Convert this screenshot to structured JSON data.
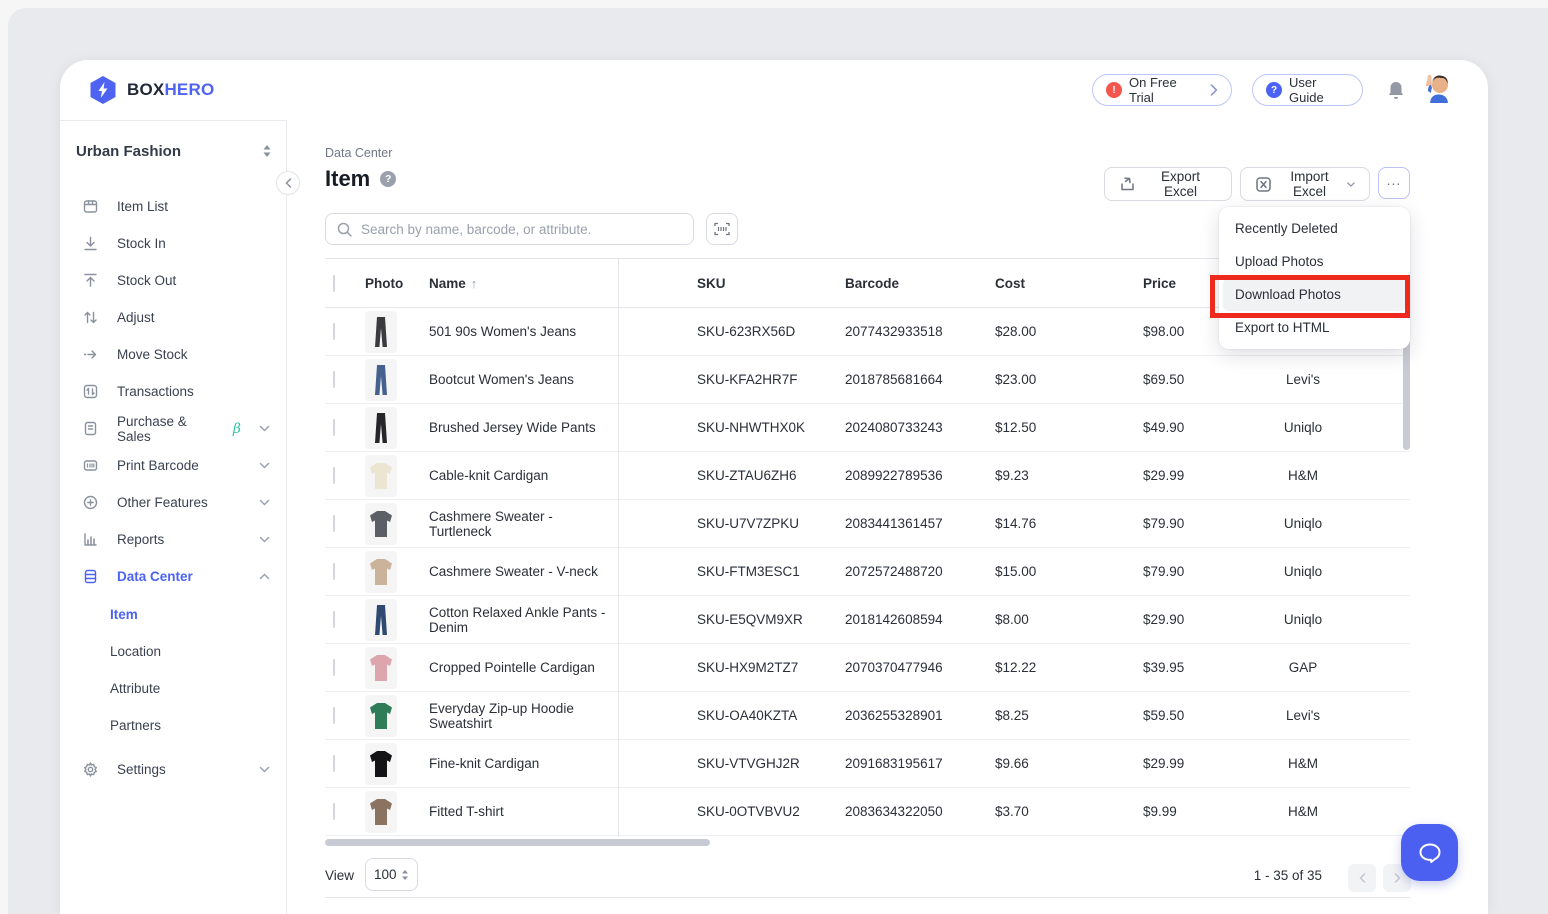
{
  "topbar": {
    "brand_box": "BOX",
    "brand_hero": "HERO",
    "trial_label": "On Free Trial",
    "user_guide_label": "User Guide"
  },
  "sidebar": {
    "workspace_name": "Urban Fashion",
    "items": [
      {
        "label": "Item List",
        "icon": "item-list-icon"
      },
      {
        "label": "Stock In",
        "icon": "stock-in-icon"
      },
      {
        "label": "Stock Out",
        "icon": "stock-out-icon"
      },
      {
        "label": "Adjust",
        "icon": "adjust-icon"
      },
      {
        "label": "Move Stock",
        "icon": "move-stock-icon"
      },
      {
        "label": "Transactions",
        "icon": "transactions-icon"
      },
      {
        "label": "Purchase & Sales",
        "icon": "purchase-sales-icon",
        "beta": "β",
        "chevron": "down"
      },
      {
        "label": "Print Barcode",
        "icon": "print-barcode-icon",
        "chevron": "down"
      },
      {
        "label": "Other Features",
        "icon": "other-features-icon",
        "chevron": "down"
      },
      {
        "label": "Reports",
        "icon": "reports-icon",
        "chevron": "down"
      },
      {
        "label": "Data Center",
        "icon": "data-center-icon",
        "chevron": "up",
        "active": true
      }
    ],
    "data_center_children": [
      {
        "label": "Item",
        "active": true
      },
      {
        "label": "Location"
      },
      {
        "label": "Attribute"
      },
      {
        "label": "Partners"
      }
    ],
    "settings": {
      "label": "Settings",
      "icon": "settings-icon",
      "chevron": "down"
    }
  },
  "page_header": {
    "breadcrumb": "Data Center",
    "title": "Item",
    "export_excel_label": "Export Excel",
    "import_excel_label": "Import Excel",
    "more_label": "..."
  },
  "search": {
    "placeholder": "Search by name, barcode, or attribute."
  },
  "dropdown_menu": {
    "items": [
      "Recently Deleted",
      "Upload Photos",
      "Download Photos",
      "Export to HTML"
    ],
    "highlighted_item": "Download Photos"
  },
  "table": {
    "headers": [
      "Photo",
      "Name",
      "SKU",
      "Barcode",
      "Cost",
      "Price",
      ""
    ],
    "sorted_by": "Name",
    "sort_direction": "asc",
    "rows": [
      {
        "name": "501 90s Women's Jeans",
        "sku": "SKU-623RX56D",
        "barcode": "2077432933518",
        "cost": "$28.00",
        "price": "$98.00",
        "brand": "",
        "photo": {
          "type": "pants",
          "color": "#3b3b3f"
        }
      },
      {
        "name": "Bootcut Women's Jeans",
        "sku": "SKU-KFA2HR7F",
        "barcode": "2018785681664",
        "cost": "$23.00",
        "price": "$69.50",
        "brand": "Levi's",
        "photo": {
          "type": "pants",
          "color": "#45618e"
        }
      },
      {
        "name": "Brushed Jersey Wide Pants",
        "sku": "SKU-NHWTHX0K",
        "barcode": "2024080733243",
        "cost": "$12.50",
        "price": "$49.90",
        "brand": "Uniqlo",
        "photo": {
          "type": "pants",
          "color": "#26262a"
        }
      },
      {
        "name": "Cable-knit Cardigan",
        "sku": "SKU-ZTAU6ZH6",
        "barcode": "2089922789536",
        "cost": "$9.23",
        "price": "$29.99",
        "brand": "H&M",
        "photo": {
          "type": "top",
          "color": "#ece5d1"
        }
      },
      {
        "name": "Cashmere Sweater - Turtleneck",
        "sku": "SKU-U7V7ZPKU",
        "barcode": "2083441361457",
        "cost": "$14.76",
        "price": "$79.90",
        "brand": "Uniqlo",
        "photo": {
          "type": "top",
          "color": "#5c6066"
        }
      },
      {
        "name": "Cashmere Sweater - V-neck",
        "sku": "SKU-FTM3ESC1",
        "barcode": "2072572488720",
        "cost": "$15.00",
        "price": "$79.90",
        "brand": "Uniqlo",
        "photo": {
          "type": "top",
          "color": "#cbb39b"
        }
      },
      {
        "name": "Cotton Relaxed Ankle Pants - Denim",
        "sku": "SKU-E5QVM9XR",
        "barcode": "2018142608594",
        "cost": "$8.00",
        "price": "$29.90",
        "brand": "Uniqlo",
        "photo": {
          "type": "pants",
          "color": "#2f4a72"
        }
      },
      {
        "name": "Cropped Pointelle Cardigan",
        "sku": "SKU-HX9M2TZ7",
        "barcode": "2070370477946",
        "cost": "$12.22",
        "price": "$39.95",
        "brand": "GAP",
        "photo": {
          "type": "top",
          "color": "#dda6ad"
        }
      },
      {
        "name": "Everyday Zip-up Hoodie Sweatshirt",
        "sku": "SKU-OA40KZTA",
        "barcode": "2036255328901",
        "cost": "$8.25",
        "price": "$59.50",
        "brand": "Levi's",
        "photo": {
          "type": "top",
          "color": "#2f7c58"
        }
      },
      {
        "name": "Fine-knit Cardigan",
        "sku": "SKU-VTVGHJ2R",
        "barcode": "2091683195617",
        "cost": "$9.66",
        "price": "$29.99",
        "brand": "H&M",
        "photo": {
          "type": "top",
          "color": "#141416"
        }
      },
      {
        "name": "Fitted T-shirt",
        "sku": "SKU-0OTVBVU2",
        "barcode": "2083634322050",
        "cost": "$3.70",
        "price": "$9.99",
        "brand": "H&M",
        "photo": {
          "type": "top",
          "color": "#8b7361"
        }
      }
    ]
  },
  "footer": {
    "view_label": "View",
    "page_size": "100",
    "range_text": "1 - 35 of 35"
  },
  "colors": {
    "accent_blue": "#4b62f5",
    "annotation_red": "#ee2a1e",
    "trial_badge_red": "#f4564e",
    "beta_teal": "#2ec5a5"
  }
}
